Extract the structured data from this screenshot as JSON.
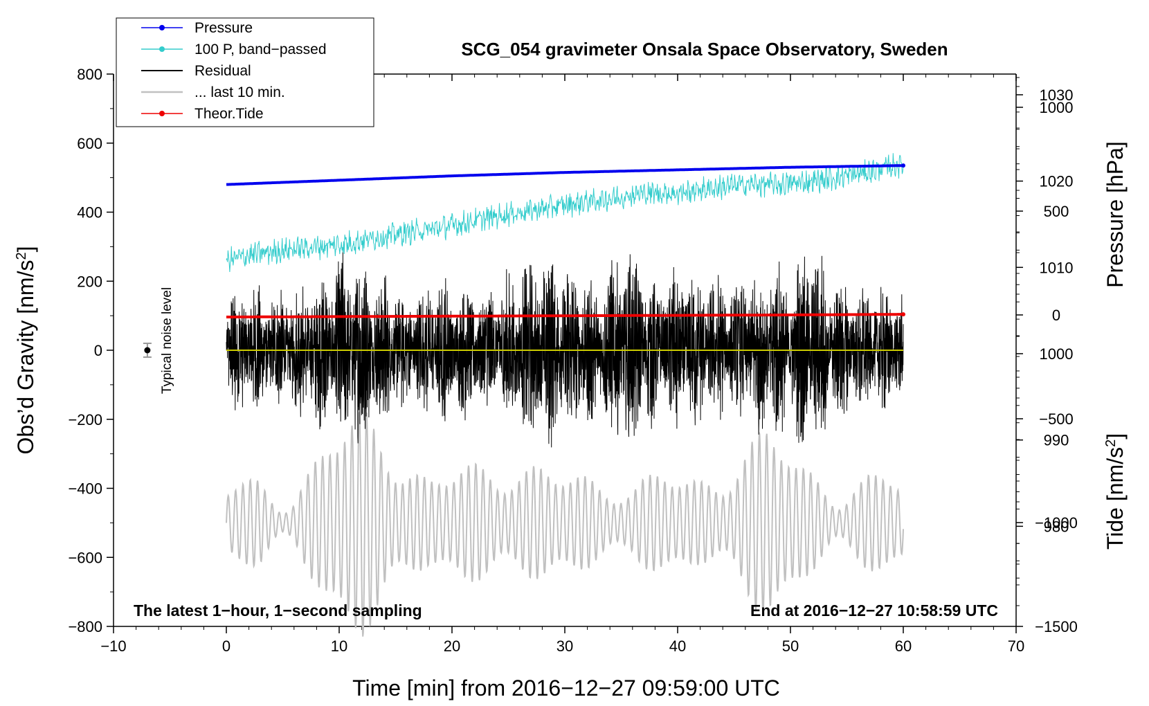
{
  "chart_data": {
    "type": "line",
    "title": "SCG_054 gravimeter Onsala Space Observatory, Sweden",
    "xlabel": "Time [min] from 2016−12−27 09:59:00 UTC",
    "ylabel_left": "Obs’d Gravity [nm/s",
    "ylabel_left_sup": "2",
    "ylabel_left_close": "]",
    "ylabel_right_pressure": "Pressure [hPa]",
    "ylabel_right_tide": "Tide [nm/s",
    "ylabel_right_tide_sup": "2",
    "ylabel_right_tide_close": "]",
    "xlim": [
      -10,
      70
    ],
    "ylim_left": [
      -800,
      800
    ],
    "x_ticks": [
      {
        "value": -10,
        "label": "−10"
      },
      {
        "value": 0,
        "label": "0"
      },
      {
        "value": 10,
        "label": "10"
      },
      {
        "value": 20,
        "label": "20"
      },
      {
        "value": 30,
        "label": "30"
      },
      {
        "value": 40,
        "label": "40"
      },
      {
        "value": 50,
        "label": "50"
      },
      {
        "value": 60,
        "label": "60"
      },
      {
        "value": 70,
        "label": "70"
      }
    ],
    "y_ticks_left": [
      {
        "value": 800,
        "label": "800"
      },
      {
        "value": 600,
        "label": "600"
      },
      {
        "value": 400,
        "label": "400"
      },
      {
        "value": 200,
        "label": "200"
      },
      {
        "value": 0,
        "label": "0"
      },
      {
        "value": -200,
        "label": "−200"
      },
      {
        "value": -400,
        "label": "−400"
      },
      {
        "value": -600,
        "label": "−600"
      },
      {
        "value": -800,
        "label": "−800"
      }
    ],
    "pressure_axis": {
      "ylim": [
        968.4,
        1032.4
      ],
      "ticks": [
        {
          "value": 1030,
          "label": "1030"
        },
        {
          "value": 1020,
          "label": "1020"
        },
        {
          "value": 1010,
          "label": "1010"
        },
        {
          "value": 1000,
          "label": "1000"
        },
        {
          "value": 990,
          "label": "990"
        },
        {
          "value": 980,
          "label": "980"
        }
      ]
    },
    "tide_axis": {
      "ylim": [
        -1500,
        1160
      ],
      "ticks": [
        {
          "value": 1000,
          "label": "1000"
        },
        {
          "value": 500,
          "label": "500"
        },
        {
          "value": 0,
          "label": "0"
        },
        {
          "value": -500,
          "label": "−500"
        },
        {
          "value": -1000,
          "label": "−1000"
        },
        {
          "value": -1500,
          "label": "−1500"
        }
      ]
    },
    "series": [
      {
        "name": "Pressure",
        "color": "#0000ee",
        "axis": "pressure",
        "x": [
          0,
          10,
          20,
          30,
          40,
          50,
          60
        ],
        "values": [
          1019.6,
          1020.1,
          1020.6,
          1021.0,
          1021.3,
          1021.6,
          1021.8
        ]
      },
      {
        "name": "100 P, band−passed",
        "color": "#33cccc",
        "axis": "left",
        "x": [
          0,
          2,
          5,
          8,
          10,
          13,
          16,
          19,
          22,
          25,
          28,
          31,
          34,
          37,
          40,
          43,
          46,
          49,
          52,
          55,
          58,
          60
        ],
        "values": [
          260,
          275,
          290,
          300,
          305,
          325,
          340,
          355,
          375,
          395,
          410,
          425,
          440,
          455,
          455,
          470,
          480,
          480,
          490,
          505,
          525,
          540
        ]
      },
      {
        "name": "Residual",
        "color": "#000000",
        "axis": "left",
        "amplitude_x": [
          0,
          5,
          8,
          11,
          14,
          16,
          19,
          22,
          25,
          28,
          30,
          33,
          35,
          38,
          40,
          43,
          45,
          48,
          50,
          52,
          54,
          57,
          60
        ],
        "amplitude": [
          140,
          120,
          150,
          210,
          160,
          110,
          150,
          130,
          160,
          200,
          180,
          140,
          220,
          150,
          170,
          160,
          140,
          190,
          160,
          230,
          140,
          130,
          110
        ]
      },
      {
        "name": "... last 10 min.",
        "color": "#c0c0c0",
        "axis": "left",
        "center": -500,
        "envelope_x": [
          0,
          3,
          6,
          9,
          12,
          15,
          18,
          21,
          24,
          27,
          30,
          33,
          36,
          39,
          42,
          45,
          48,
          51,
          54,
          57,
          60
        ],
        "envelope": [
          60,
          140,
          130,
          250,
          300,
          260,
          150,
          170,
          150,
          180,
          190,
          130,
          100,
          150,
          160,
          200,
          240,
          190,
          160,
          130,
          80
        ]
      },
      {
        "name": "Theor.Tide",
        "color": "#ee0000",
        "axis": "tide",
        "x": [
          0,
          10,
          20,
          30,
          40,
          50,
          60
        ],
        "values": [
          -10,
          -8,
          -6,
          -4,
          -2,
          0,
          3
        ]
      }
    ],
    "zero_line_color": "#cccc00",
    "noise_marker": {
      "x": -7,
      "y": 0,
      "err": 20,
      "label": "Typical noise level"
    },
    "annotations": {
      "left": "The latest 1−hour, 1−second sampling",
      "right": "End at 2016−12−27 10:58:59 UTC"
    },
    "legend_position": "top-left"
  }
}
